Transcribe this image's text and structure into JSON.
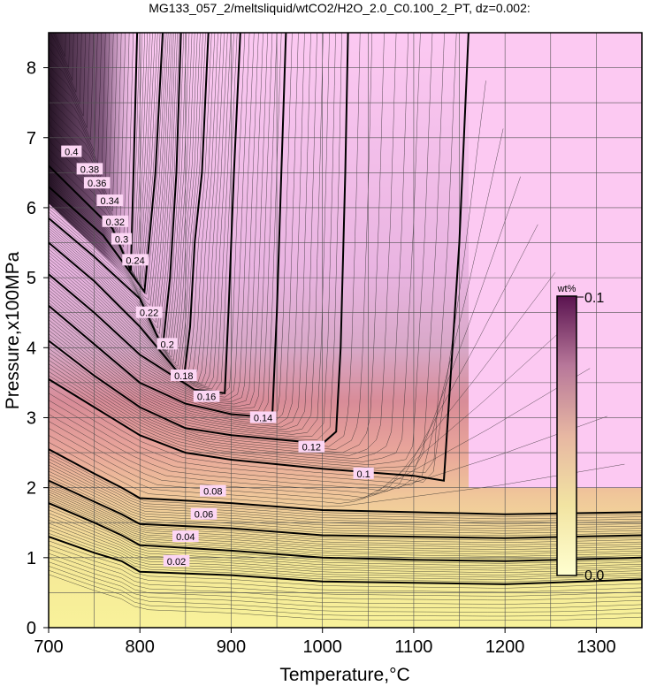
{
  "chart_data": {
    "type": "contour",
    "title": "MG133_057_2/meltsliquid/wtCO2/H2O_2.0_C0.100_2_PT, dz=0.002:",
    "xlabel": "Temperature,°C",
    "ylabel": "Pressure,x100MPa",
    "xlim": [
      700,
      1350
    ],
    "ylim": [
      0,
      8.5
    ],
    "x_ticks": [
      "700",
      "800",
      "900",
      "1000",
      "1100",
      "1200",
      "1300"
    ],
    "y_ticks": [
      "0",
      "1",
      "2",
      "3",
      "4",
      "5",
      "6",
      "7",
      "8"
    ],
    "grid": true,
    "colorbar": {
      "label": "wt%",
      "min_label": "0.0",
      "max_label": "0.1",
      "min": 0.0,
      "max": 0.1
    },
    "contour_interval": 0.002,
    "labeled_levels": [
      "0.02",
      "0.04",
      "0.06",
      "0.08",
      "0.1",
      "0.12",
      "0.14",
      "0.16",
      "0.18",
      "0.2",
      "0.22",
      "0.24",
      "0.3",
      "0.32",
      "0.34",
      "0.36",
      "0.38",
      "0.4"
    ],
    "contours": [
      {
        "level": "0.02",
        "points": [
          [
            700,
            1.3
          ],
          [
            750,
            1.07
          ],
          [
            780,
            0.95
          ],
          [
            800,
            0.8
          ],
          [
            900,
            0.75
          ],
          [
            1000,
            0.66
          ],
          [
            1100,
            0.64
          ],
          [
            1200,
            0.62
          ],
          [
            1350,
            0.69
          ]
        ],
        "label_at": [
          1070,
          0.66
        ]
      },
      {
        "level": "0.04",
        "points": [
          [
            700,
            1.78
          ],
          [
            750,
            1.5
          ],
          [
            780,
            1.32
          ],
          [
            800,
            1.18
          ],
          [
            900,
            1.1
          ],
          [
            1000,
            1.0
          ],
          [
            1100,
            0.97
          ],
          [
            1200,
            0.95
          ],
          [
            1350,
            1.0
          ]
        ],
        "label_at": [
          1090,
          0.97
        ]
      },
      {
        "level": "0.06",
        "points": [
          [
            700,
            2.1
          ],
          [
            750,
            1.8
          ],
          [
            780,
            1.62
          ],
          [
            800,
            1.48
          ],
          [
            900,
            1.42
          ],
          [
            1000,
            1.32
          ],
          [
            1100,
            1.3
          ],
          [
            1200,
            1.28
          ],
          [
            1350,
            1.32
          ]
        ],
        "label_at": [
          1085,
          1.3
        ]
      },
      {
        "level": "0.08",
        "points": [
          [
            700,
            2.55
          ],
          [
            750,
            2.2
          ],
          [
            780,
            2.0
          ],
          [
            800,
            1.85
          ],
          [
            900,
            1.78
          ],
          [
            1000,
            1.68
          ],
          [
            1100,
            1.65
          ],
          [
            1200,
            1.62
          ],
          [
            1350,
            1.65
          ]
        ],
        "label_at": [
          1080,
          1.65
        ]
      },
      {
        "level": "0.1",
        "points": [
          [
            700,
            3.55
          ],
          [
            750,
            3.15
          ],
          [
            800,
            2.75
          ],
          [
            850,
            2.5
          ],
          [
            900,
            2.4
          ],
          [
            1000,
            2.27
          ],
          [
            1100,
            2.17
          ],
          [
            1133,
            2.1
          ],
          [
            1140,
            3.5
          ],
          [
            1150,
            5.5
          ],
          [
            1160,
            8.5
          ]
        ],
        "label_at": [
          1148,
          4.2
        ]
      },
      {
        "level": "0.12",
        "points": [
          [
            700,
            4.1
          ],
          [
            750,
            3.6
          ],
          [
            800,
            3.15
          ],
          [
            850,
            2.85
          ],
          [
            900,
            2.75
          ],
          [
            1000,
            2.63
          ],
          [
            1015,
            2.8
          ],
          [
            1020,
            4.0
          ],
          [
            1025,
            6.5
          ],
          [
            1028,
            8.5
          ]
        ],
        "label_at": [
          1020,
          5.0
        ]
      },
      {
        "level": "0.14",
        "points": [
          [
            700,
            4.6
          ],
          [
            750,
            4.05
          ],
          [
            800,
            3.5
          ],
          [
            850,
            3.2
          ],
          [
            900,
            3.05
          ],
          [
            945,
            3.0
          ],
          [
            950,
            4.5
          ],
          [
            955,
            6.5
          ],
          [
            960,
            8.5
          ]
        ],
        "label_at": [
          955,
          5.4
        ]
      },
      {
        "level": "0.16",
        "points": [
          [
            700,
            5.05
          ],
          [
            750,
            4.5
          ],
          [
            800,
            3.9
          ],
          [
            860,
            3.4
          ],
          [
            893,
            3.35
          ],
          [
            897,
            4.5
          ],
          [
            903,
            6.5
          ],
          [
            910,
            8.5
          ]
        ],
        "label_at": [
          898,
          5.5
        ]
      },
      {
        "level": "0.18",
        "points": [
          [
            700,
            5.5
          ],
          [
            750,
            4.95
          ],
          [
            800,
            4.3
          ],
          [
            848,
            3.55
          ],
          [
            855,
            4.3
          ],
          [
            860,
            5.5
          ],
          [
            868,
            6.5
          ],
          [
            875,
            8.5
          ]
        ],
        "label_at": [
          855,
          6.1
        ]
      },
      {
        "level": "0.2",
        "points": [
          [
            700,
            5.85
          ],
          [
            750,
            5.3
          ],
          [
            800,
            4.7
          ],
          [
            825,
            4.0
          ],
          [
            833,
            5.0
          ],
          [
            840,
            6.5
          ],
          [
            845,
            8.5
          ]
        ],
        "label_at": [
          838,
          6.4
        ]
      },
      {
        "level": "0.22",
        "points": [
          [
            700,
            6.3
          ],
          [
            760,
            5.6
          ],
          [
            805,
            4.8
          ],
          [
            810,
            5.5
          ],
          [
            817,
            6.5
          ],
          [
            825,
            8.5
          ]
        ],
        "label_at": [
          822,
          6.6
        ]
      },
      {
        "level": "0.24",
        "points": [
          [
            700,
            6.6
          ],
          [
            770,
            5.7
          ],
          [
            790,
            5.1
          ],
          [
            793,
            6.5
          ],
          [
            797,
            8.5
          ]
        ],
        "label_at": [
          818,
          6.9
        ]
      }
    ],
    "contour_labels": [
      {
        "text": "0.4",
        "at": [
          725,
          6.8
        ]
      },
      {
        "text": "0.38",
        "at": [
          745,
          6.55
        ]
      },
      {
        "text": "0.36",
        "at": [
          753,
          6.35
        ]
      },
      {
        "text": "0.34",
        "at": [
          767,
          6.1
        ]
      },
      {
        "text": "0.32",
        "at": [
          773,
          5.8
        ]
      },
      {
        "text": "0.3",
        "at": [
          780,
          5.55
        ]
      },
      {
        "text": "0.24",
        "at": [
          795,
          5.25
        ]
      },
      {
        "text": "0.22",
        "at": [
          810,
          4.5
        ]
      },
      {
        "text": "0.2",
        "at": [
          830,
          4.05
        ]
      },
      {
        "text": "0.18",
        "at": [
          848,
          3.6
        ]
      },
      {
        "text": "0.16",
        "at": [
          873,
          3.3
        ]
      },
      {
        "text": "0.14",
        "at": [
          935,
          3.0
        ]
      },
      {
        "text": "0.12",
        "at": [
          988,
          2.58
        ]
      },
      {
        "text": "0.1",
        "at": [
          1045,
          2.2
        ]
      },
      {
        "text": "0.08",
        "at": [
          880,
          1.95
        ]
      },
      {
        "text": "0.06",
        "at": [
          870,
          1.62
        ]
      },
      {
        "text": "0.04",
        "at": [
          850,
          1.3
        ]
      },
      {
        "text": "0.02",
        "at": [
          840,
          0.95
        ]
      }
    ]
  }
}
